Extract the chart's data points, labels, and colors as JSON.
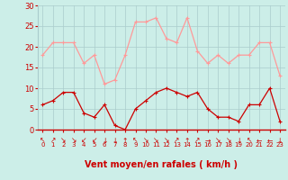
{
  "hours": [
    0,
    1,
    2,
    3,
    4,
    5,
    6,
    7,
    8,
    9,
    10,
    11,
    12,
    13,
    14,
    15,
    16,
    17,
    18,
    19,
    20,
    21,
    22,
    23
  ],
  "wind_avg": [
    6,
    7,
    9,
    9,
    4,
    3,
    6,
    1,
    0,
    5,
    7,
    9,
    10,
    9,
    8,
    9,
    5,
    3,
    3,
    2,
    6,
    6,
    10,
    2
  ],
  "wind_gust": [
    18,
    21,
    21,
    21,
    16,
    18,
    11,
    12,
    18,
    26,
    26,
    27,
    22,
    21,
    27,
    19,
    16,
    18,
    16,
    18,
    18,
    21,
    21,
    13
  ],
  "bg_color": "#cceee8",
  "grid_color": "#aacccc",
  "line_color_avg": "#cc0000",
  "line_color_gust": "#ff9999",
  "xlabel": "Vent moyen/en rafales ( km/h )",
  "xlabel_color": "#cc0000",
  "tick_color": "#cc0000",
  "ylim": [
    0,
    30
  ],
  "yticks": [
    0,
    5,
    10,
    15,
    20,
    25,
    30
  ],
  "wind_dirs": [
    "↖",
    "↗",
    "↘",
    "↘",
    "↙",
    "↙",
    "↓",
    "↓",
    "↑",
    "↖",
    "↘",
    "↘",
    "↘",
    "↗",
    "↑",
    "↗",
    "→",
    "↘",
    "↘",
    "↓",
    "↖",
    "←",
    "←",
    "↓"
  ]
}
